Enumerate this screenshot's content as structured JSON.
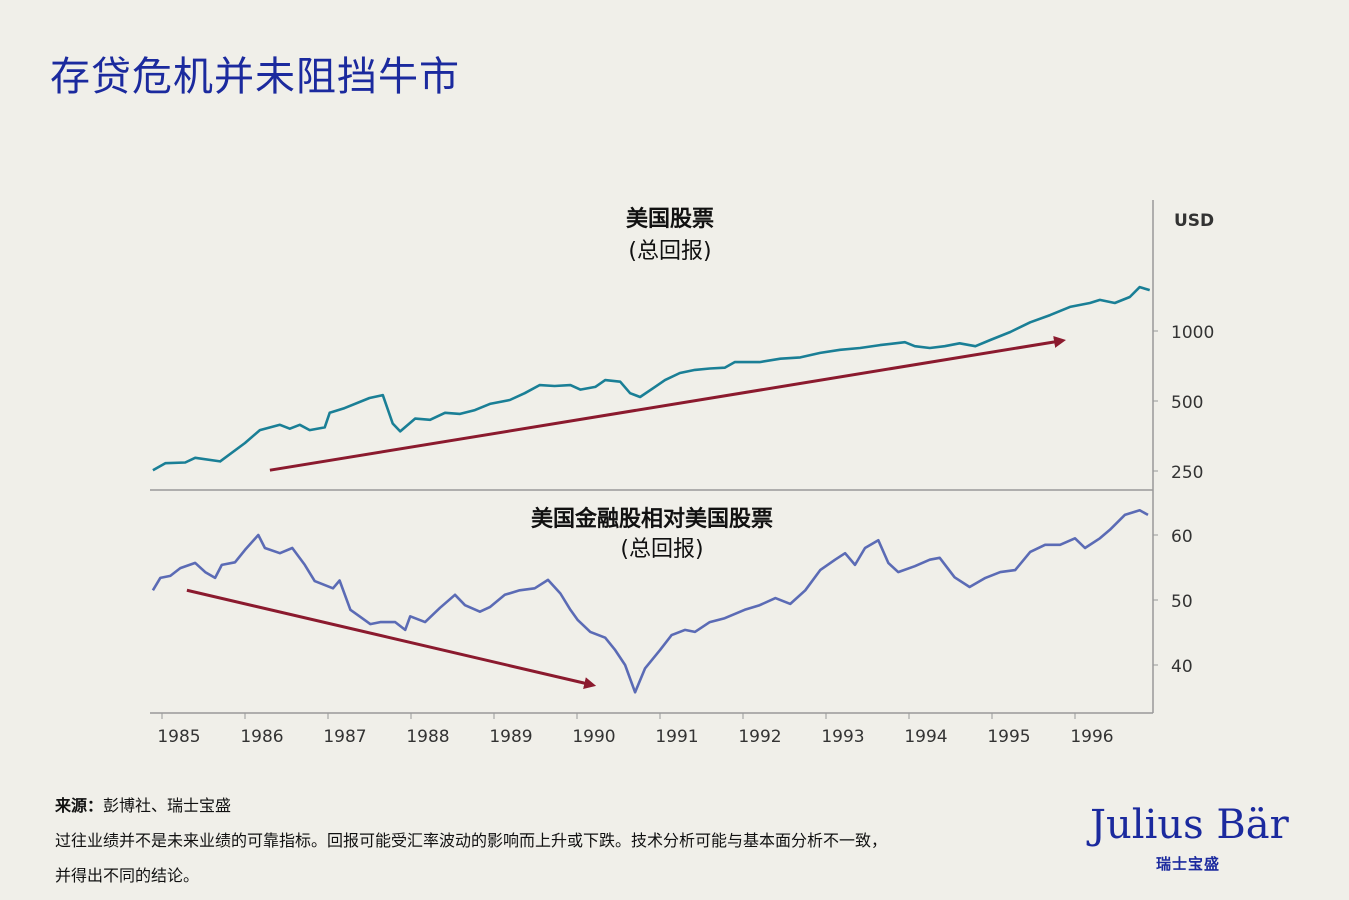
{
  "title": "存贷危机并未阻挡牛市",
  "colors": {
    "title": "#1b2a9e",
    "top_line": "#1a7f96",
    "bottom_line": "#5b6bb5",
    "arrow": "#8b1a2e",
    "axis": "#999999",
    "background": "#f0efe9"
  },
  "chart_data": [
    {
      "type": "line",
      "title": "美国股票",
      "subtitle": "(总回报)",
      "ylabel": "USD",
      "yscale": "log",
      "ylim": [
        200,
        1700
      ],
      "yticks": [
        250,
        500,
        1000
      ],
      "ytick_labels": [
        "250",
        "500",
        "1000"
      ],
      "axis_position": "right",
      "grid": false,
      "series": [
        {
          "x": [
            1984.89,
            1985.04,
            1985.28,
            1985.4,
            1985.7,
            1986.0,
            1986.18,
            1986.42,
            1986.54,
            1986.66,
            1986.78,
            1986.96,
            1987.02,
            1987.2,
            1987.5,
            1987.66,
            1987.78,
            1987.87,
            1988.05,
            1988.23,
            1988.41,
            1988.59,
            1988.77,
            1988.95,
            1989.19,
            1989.37,
            1989.55,
            1989.73,
            1989.92,
            1990.04,
            1990.22,
            1990.34,
            1990.52,
            1990.64,
            1990.76,
            1990.94,
            1991.06,
            1991.24,
            1991.42,
            1991.6,
            1991.78,
            1991.9,
            1992.2,
            1992.45,
            1992.69,
            1992.93,
            1993.17,
            1993.41,
            1993.65,
            1993.95,
            1994.07,
            1994.25,
            1994.43,
            1994.61,
            1994.8,
            1994.98,
            1995.22,
            1995.46,
            1995.7,
            1995.94,
            1996.18,
            1996.3,
            1996.48,
            1996.66,
            1996.78,
            1996.9
          ],
          "values": [
            252,
            270,
            272,
            285,
            275,
            330,
            375,
            395,
            380,
            395,
            375,
            385,
            445,
            466,
            515,
            530,
            400,
            370,
            420,
            415,
            445,
            440,
            457,
            486,
            505,
            540,
            585,
            580,
            585,
            560,
            575,
            615,
            605,
            540,
            520,
            575,
            615,
            660,
            680,
            690,
            695,
            735,
            735,
            760,
            770,
            805,
            830,
            845,
            870,
            895,
            860,
            845,
            860,
            885,
            860,
            915,
            990,
            1090,
            1170,
            1270,
            1320,
            1360,
            1320,
            1400,
            1545,
            1500
          ]
        }
      ],
      "annotations": [
        {
          "type": "arrow",
          "from": {
            "x": 1986.3,
            "y": 252
          },
          "to": {
            "x": 1995.82,
            "y": 906
          }
        }
      ]
    },
    {
      "type": "line",
      "title": "美国金融股相对美国股票",
      "subtitle": "(总回报)",
      "ylim": [
        33,
        67
      ],
      "yticks": [
        40,
        50,
        60
      ],
      "ytick_labels": [
        "40",
        "50",
        "60"
      ],
      "axis_position": "right",
      "grid": false,
      "xticks": [
        1985,
        1986,
        1987,
        1988,
        1989,
        1990,
        1991,
        1992,
        1993,
        1994,
        1995,
        1996
      ],
      "xtick_labels": [
        "1985",
        "1986",
        "1987",
        "1988",
        "1989",
        "1990",
        "1991",
        "1992",
        "1993",
        "1994",
        "1995",
        "1996"
      ],
      "series": [
        {
          "x": [
            1984.89,
            1984.98,
            1985.1,
            1985.22,
            1985.4,
            1985.52,
            1985.64,
            1985.72,
            1985.88,
            1986.0,
            1986.16,
            1986.24,
            1986.42,
            1986.57,
            1986.72,
            1986.84,
            1987.06,
            1987.14,
            1987.27,
            1987.39,
            1987.51,
            1987.63,
            1987.81,
            1987.93,
            1987.99,
            1988.17,
            1988.35,
            1988.53,
            1988.65,
            1988.83,
            1988.95,
            1989.13,
            1989.31,
            1989.49,
            1989.65,
            1989.8,
            1989.92,
            1990.01,
            1990.16,
            1990.34,
            1990.46,
            1990.58,
            1990.7,
            1990.82,
            1991.0,
            1991.14,
            1991.3,
            1991.42,
            1991.6,
            1991.78,
            1992.02,
            1992.2,
            1992.39,
            1992.57,
            1992.75,
            1992.93,
            1993.11,
            1993.23,
            1993.35,
            1993.47,
            1993.63,
            1993.75,
            1993.87,
            1994.07,
            1994.25,
            1994.37,
            1994.55,
            1994.73,
            1994.92,
            1995.1,
            1995.28,
            1995.46,
            1995.64,
            1995.82,
            1996.0,
            1996.12,
            1996.3,
            1996.42,
            1996.6,
            1996.78,
            1996.88
          ],
          "values": [
            51.5,
            53.4,
            53.7,
            54.9,
            55.7,
            54.3,
            53.4,
            55.4,
            55.8,
            57.7,
            60.0,
            58.0,
            57.2,
            58.0,
            55.4,
            52.9,
            51.8,
            53.0,
            48.5,
            47.4,
            46.3,
            46.6,
            46.6,
            45.4,
            47.5,
            46.6,
            48.8,
            50.8,
            49.2,
            48.2,
            48.9,
            50.8,
            51.5,
            51.8,
            53.1,
            51.0,
            48.5,
            46.9,
            45.1,
            44.2,
            42.3,
            40.0,
            35.8,
            39.5,
            42.3,
            44.6,
            45.4,
            45.1,
            46.6,
            47.2,
            48.5,
            49.2,
            50.3,
            49.4,
            51.5,
            54.6,
            56.2,
            57.2,
            55.4,
            58.0,
            59.2,
            55.7,
            54.3,
            55.2,
            56.2,
            56.5,
            53.5,
            52.0,
            53.4,
            54.3,
            54.6,
            57.4,
            58.5,
            58.5,
            59.5,
            58.0,
            59.5,
            60.8,
            63.1,
            63.8,
            63.1
          ]
        }
      ],
      "annotations": [
        {
          "type": "arrow",
          "from": {
            "x": 1985.3,
            "y": 51.5
          },
          "to": {
            "x": 1990.16,
            "y": 37.0
          }
        }
      ]
    }
  ],
  "footer": {
    "source_label": "来源：",
    "source_text": "彭博社、瑞士宝盛",
    "disclaimer_line1": "过往业绩并不是未来业绩的可靠指标。回报可能受汇率波动的影响而上升或下跌。技术分析可能与基本面分析不一致，",
    "disclaimer_line2": "并得出不同的结论。"
  },
  "logo": {
    "name": "Julius Bär",
    "sub": "瑞士宝盛"
  }
}
